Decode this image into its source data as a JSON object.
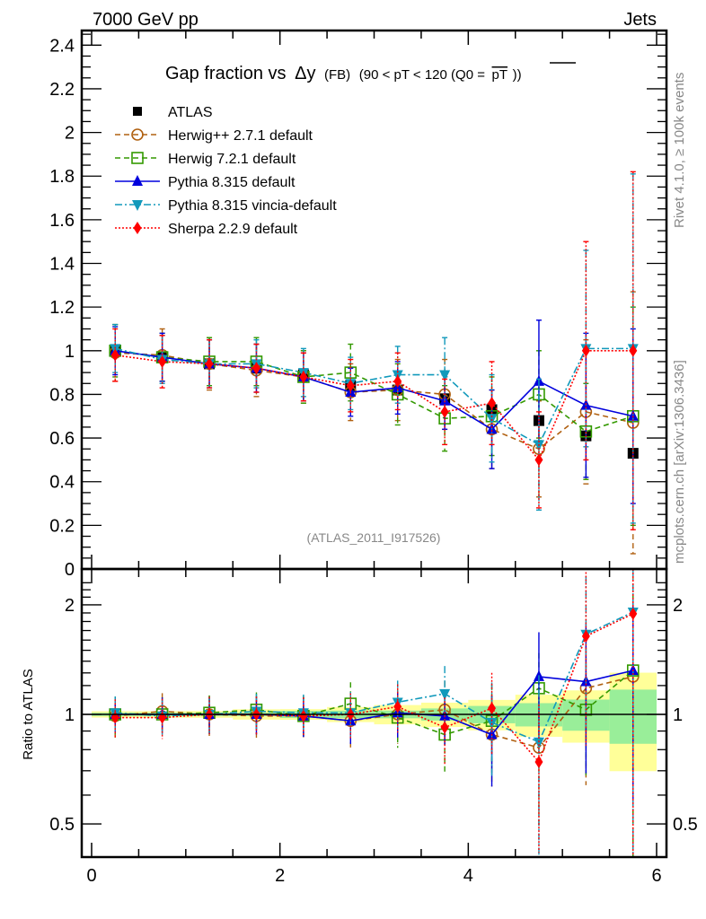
{
  "chart_data": {
    "type": "scatter",
    "header_left": "7000 GeV pp",
    "header_right": "Jets",
    "title_main": "Gap fraction vs",
    "title_delta": "Δy",
    "title_fb": "(FB)",
    "title_cut": "(90 < pT < 120 (Q0 =",
    "title_pt": "pT",
    "title_close": "))",
    "analysis_label": "(ATLAS_2011_I917526)",
    "side_label_top": "Rivet 4.1.0, ≥ 100k events",
    "side_label_bottom": "mcplots.cern.ch [arXiv:1306.3436]",
    "ratio_ylabel": "Ratio to ATLAS",
    "xlabel": "",
    "xlim": [
      -0.1,
      6.1
    ],
    "ylim_main": [
      0,
      2.45
    ],
    "ylim_ratio": [
      0.4,
      2.3
    ],
    "ratio_scale": "log",
    "x_ticks": [
      "0",
      "2",
      "4",
      "6"
    ],
    "x_tick_values": [
      0,
      2,
      4,
      6
    ],
    "y_ticks_main": [
      "0",
      "0.2",
      "0.4",
      "0.6",
      "0.8",
      "1",
      "1.2",
      "1.4",
      "1.6",
      "1.8",
      "2",
      "2.2",
      "2.4"
    ],
    "y_tick_values_main": [
      0,
      0.2,
      0.4,
      0.6,
      0.8,
      1.0,
      1.2,
      1.4,
      1.6,
      1.8,
      2.0,
      2.2,
      2.4
    ],
    "y_ticks_ratio": [
      "0.5",
      "1",
      "2"
    ],
    "y_tick_values_ratio": [
      0.5,
      1,
      2
    ],
    "legend_position": "top-left",
    "x": [
      0.25,
      0.75,
      1.25,
      1.75,
      2.25,
      2.75,
      3.25,
      3.75,
      4.25,
      4.75,
      5.25,
      5.75
    ],
    "data": {
      "name": "ATLAS",
      "color": "#000000",
      "values": [
        1.0,
        0.97,
        0.94,
        0.92,
        0.89,
        0.84,
        0.82,
        0.78,
        0.73,
        0.68,
        0.61,
        0.53
      ],
      "band_inner": [
        0.01,
        0.01,
        0.01,
        0.01,
        0.02,
        0.02,
        0.02,
        0.03,
        0.04,
        0.05,
        0.06,
        0.09
      ],
      "band_outer": [
        0.02,
        0.02,
        0.02,
        0.03,
        0.03,
        0.04,
        0.05,
        0.06,
        0.07,
        0.09,
        0.1,
        0.16
      ]
    },
    "series": [
      {
        "name": "Herwig++ 2.7.1 default",
        "color": "#b06010",
        "marker": "open-circle",
        "dash": "6,4",
        "values": [
          0.99,
          0.98,
          0.94,
          0.91,
          0.88,
          0.81,
          0.82,
          0.8,
          0.64,
          0.55,
          0.72,
          0.67
        ],
        "err": [
          0.13,
          0.12,
          0.12,
          0.12,
          0.12,
          0.13,
          0.14,
          0.16,
          0.18,
          0.22,
          0.33,
          0.6
        ]
      },
      {
        "name": "Herwig 7.2.1 default",
        "color": "#339900",
        "marker": "open-square",
        "dash": "6,4",
        "values": [
          1.0,
          0.97,
          0.95,
          0.95,
          0.88,
          0.9,
          0.8,
          0.69,
          0.7,
          0.8,
          0.63,
          0.7
        ],
        "err": [
          0.12,
          0.11,
          0.11,
          0.11,
          0.12,
          0.13,
          0.14,
          0.15,
          0.18,
          0.2,
          0.22,
          0.5
        ]
      },
      {
        "name": "Pythia 8.315 default",
        "color": "#0000dd",
        "marker": "filled-triangle-up",
        "dash": "",
        "values": [
          1.0,
          0.97,
          0.94,
          0.92,
          0.88,
          0.81,
          0.83,
          0.77,
          0.64,
          0.86,
          0.75,
          0.7
        ],
        "err": [
          0.11,
          0.11,
          0.11,
          0.11,
          0.11,
          0.11,
          0.12,
          0.13,
          0.18,
          0.28,
          0.33,
          0.4
        ]
      },
      {
        "name": "Pythia 8.315 vincia-default",
        "color": "#1199bb",
        "marker": "filled-triangle-down",
        "dash": "8,3,2,3",
        "values": [
          1.01,
          0.96,
          0.94,
          0.94,
          0.9,
          0.85,
          0.89,
          0.89,
          0.69,
          0.57,
          1.01,
          1.01
        ],
        "err": [
          0.11,
          0.11,
          0.11,
          0.11,
          0.11,
          0.12,
          0.13,
          0.17,
          0.2,
          0.3,
          0.45,
          0.8
        ]
      },
      {
        "name": "Sherpa 2.2.9 default",
        "color": "#ff0000",
        "marker": "filled-diamond",
        "dash": "2,2",
        "values": [
          0.98,
          0.95,
          0.94,
          0.92,
          0.88,
          0.84,
          0.86,
          0.72,
          0.76,
          0.5,
          1.0,
          1.0
        ],
        "err": [
          0.12,
          0.12,
          0.11,
          0.11,
          0.11,
          0.12,
          0.13,
          0.15,
          0.19,
          0.22,
          0.5,
          0.82
        ]
      }
    ],
    "ratio_series": [
      {
        "name": "Herwig++ 2.7.1 default",
        "values": [
          0.99,
          1.02,
          1.0,
          0.99,
          0.99,
          0.96,
          1.0,
          1.03,
          0.88,
          0.81,
          1.18,
          1.27
        ]
      },
      {
        "name": "Herwig 7.2.1 default",
        "values": [
          1.0,
          1.0,
          1.01,
          1.03,
          0.99,
          1.07,
          0.98,
          0.88,
          0.96,
          1.18,
          1.03,
          1.32
        ]
      },
      {
        "name": "Pythia 8.315 default",
        "values": [
          1.0,
          1.0,
          1.0,
          1.0,
          0.99,
          0.96,
          1.01,
          0.99,
          0.88,
          1.27,
          1.23,
          1.32
        ]
      },
      {
        "name": "Pythia 8.315 vincia-default",
        "values": [
          1.01,
          0.99,
          1.0,
          1.02,
          1.01,
          1.01,
          1.08,
          1.14,
          0.95,
          0.84,
          1.66,
          1.91
        ]
      },
      {
        "name": "Sherpa 2.2.9 default",
        "values": [
          0.98,
          0.98,
          1.0,
          1.0,
          0.99,
          1.0,
          1.05,
          0.92,
          1.04,
          0.74,
          1.64,
          1.89
        ]
      }
    ]
  }
}
